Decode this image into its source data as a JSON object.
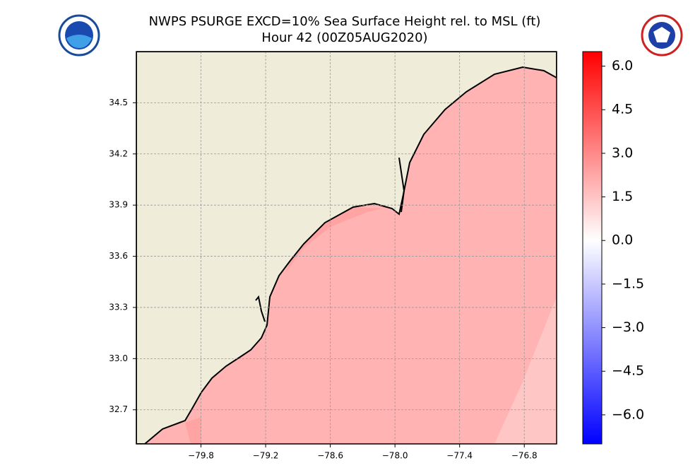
{
  "chart_data": {
    "type": "contour_map",
    "title": "NWPS PSURGE EXCD=10% Sea Surface Height rel. to MSL (ft)",
    "subtitle": "Hour 42 (00Z05AUG2020)",
    "xlim": [
      -80.4,
      -76.5
    ],
    "ylim": [
      32.5,
      34.8
    ],
    "xticks": [
      {
        "value": -79.8,
        "label": "−79.8"
      },
      {
        "value": -79.2,
        "label": "−79.2"
      },
      {
        "value": -78.6,
        "label": "−78.6"
      },
      {
        "value": -78.0,
        "label": "−78.0"
      },
      {
        "value": -77.4,
        "label": "−77.4"
      },
      {
        "value": -76.8,
        "label": "−76.8"
      }
    ],
    "yticks": [
      {
        "value": 32.7,
        "label": "32.7"
      },
      {
        "value": 33.0,
        "label": "33.0"
      },
      33.3,
      33.6,
      33.9,
      34.2,
      34.5
    ],
    "grid": true,
    "clim": [
      -7,
      6.5
    ],
    "cticks": [
      {
        "value": -6.0,
        "label": "−6.0"
      },
      {
        "value": -4.5,
        "label": "−4.5"
      },
      {
        "value": -3.0,
        "label": "−3.0"
      },
      {
        "value": -1.5,
        "label": "−1.5"
      },
      {
        "value": 0.0,
        "label": "0.0"
      },
      {
        "value": 1.5,
        "label": "1.5"
      },
      {
        "value": 3.0,
        "label": "3.0"
      },
      {
        "value": 4.5,
        "label": "4.5"
      },
      {
        "value": 6.0,
        "label": "6.0"
      }
    ],
    "cmap": [
      "#0000ff",
      "#ffffff",
      "#ff0000"
    ]
  }
}
